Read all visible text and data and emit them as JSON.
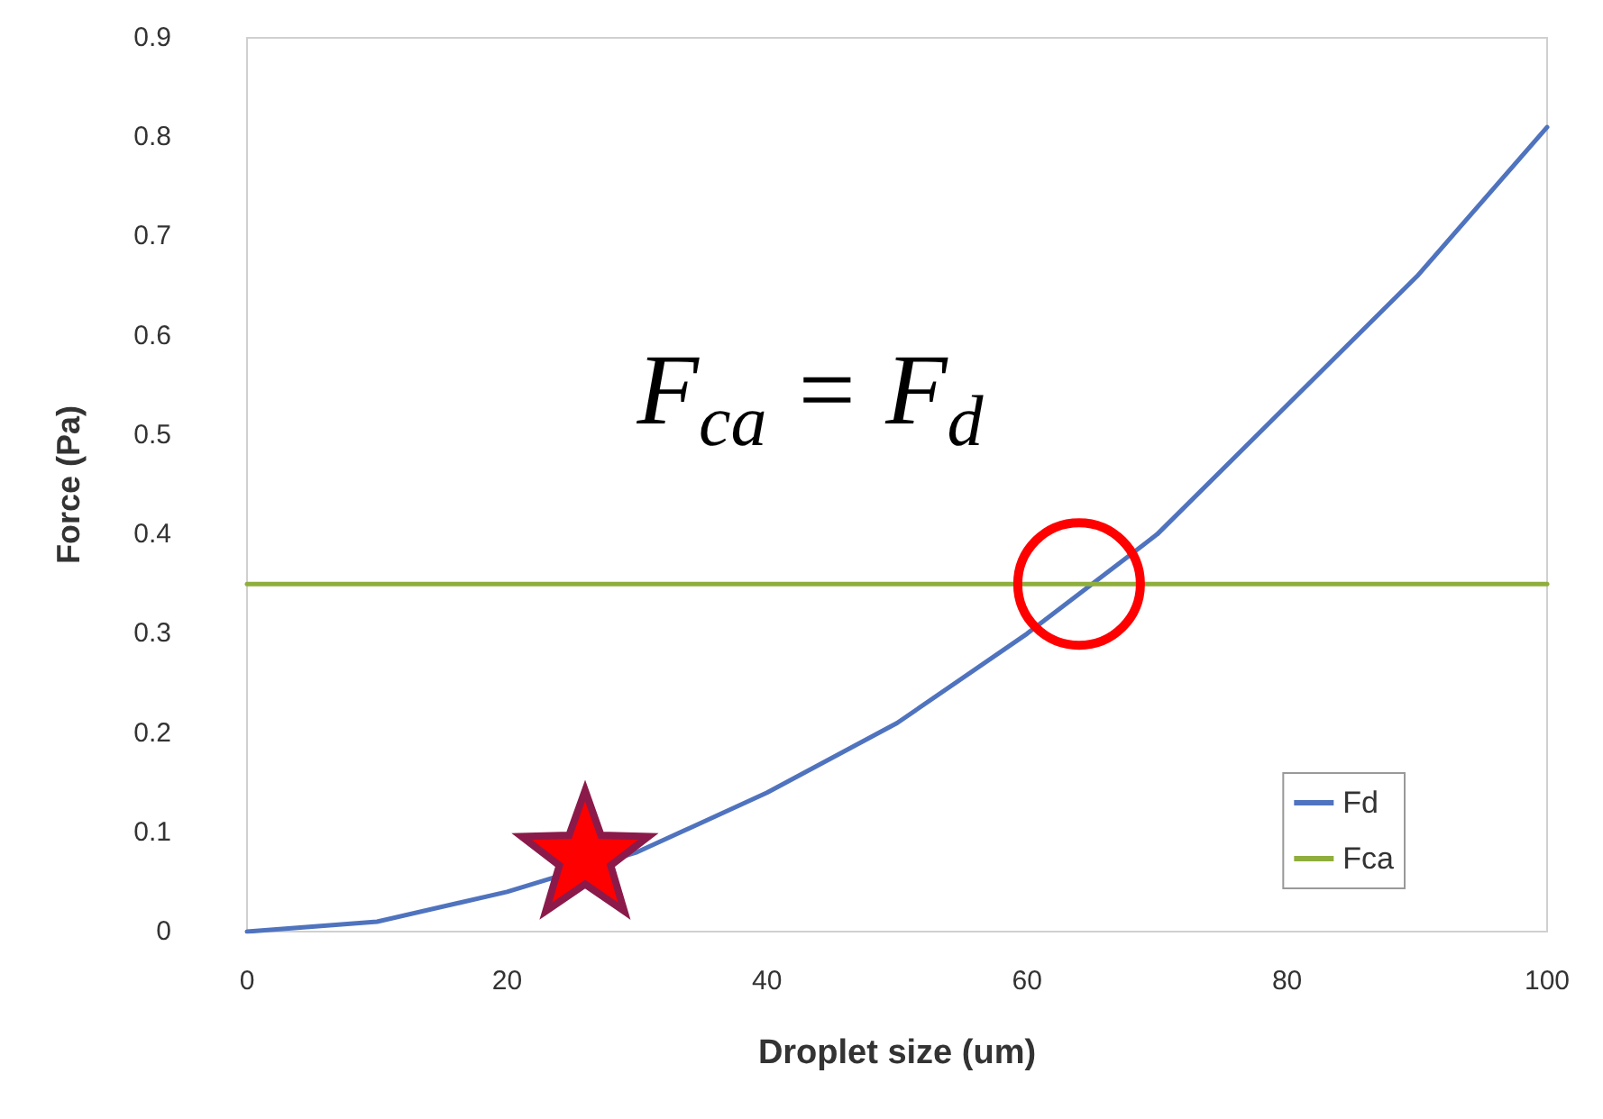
{
  "chart_data": {
    "type": "line",
    "xlabel": "Droplet size (um)",
    "ylabel": "Force (Pa)",
    "annotations": [
      "F$_{ca}$ = F$_{d}$"
    ],
    "series": [
      {
        "name": "Fd",
        "color": "#4f73be",
        "x": [
          0,
          10,
          20,
          30,
          40,
          50,
          60,
          70,
          80,
          90,
          100
        ],
        "values": [
          0,
          0.01,
          0.04,
          0.08,
          0.14,
          0.21,
          0.3,
          0.4,
          0.53,
          0.66,
          0.81
        ]
      },
      {
        "name": "Fca",
        "color": "#8fae3c",
        "x": [
          0,
          100
        ],
        "values": [
          0.35,
          0.35
        ]
      }
    ],
    "xlim": [
      0,
      100
    ],
    "xticks": [
      0,
      20,
      40,
      60,
      80,
      100
    ],
    "ylim": [
      0,
      0.9
    ],
    "yticks": [
      0,
      0.1,
      0.2,
      0.3,
      0.4,
      0.5,
      0.6,
      0.7,
      0.8,
      0.9
    ],
    "grid": false,
    "legend": "bottom right",
    "marker": "none",
    "line_style": "solid"
  }
}
